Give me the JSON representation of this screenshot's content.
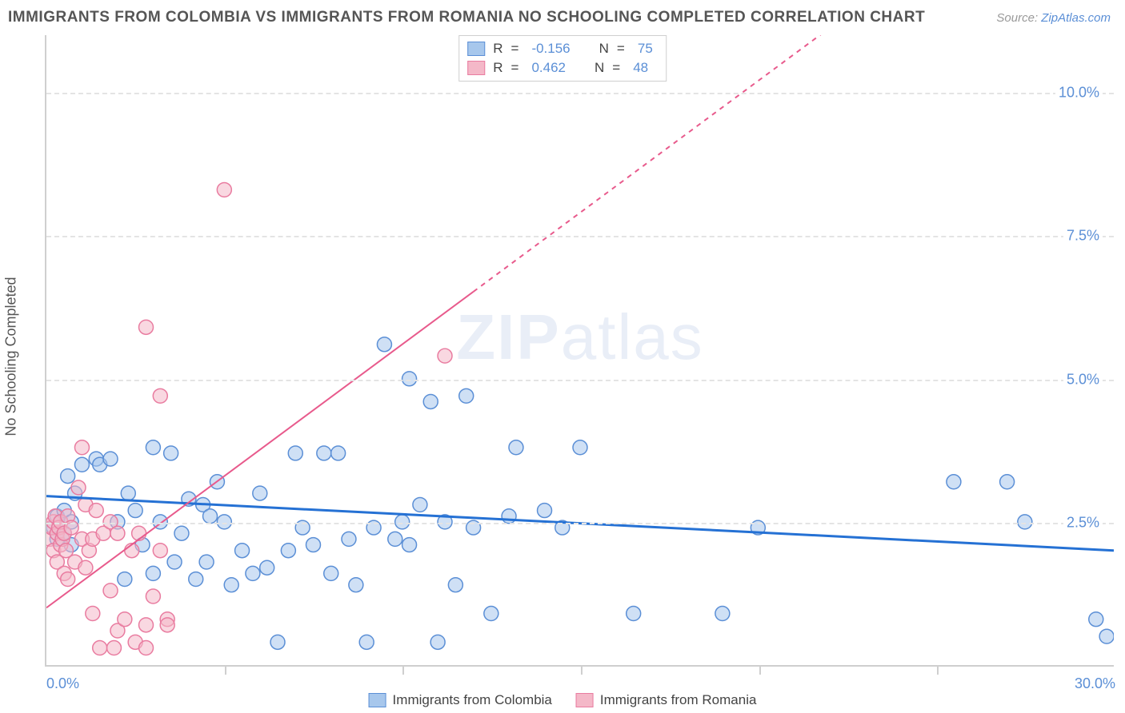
{
  "title": "IMMIGRANTS FROM COLOMBIA VS IMMIGRANTS FROM ROMANIA NO SCHOOLING COMPLETED CORRELATION CHART",
  "source_label": "Source:",
  "source_link": "ZipAtlas.com",
  "yaxis_label": "No Schooling Completed",
  "watermark_bold": "ZIP",
  "watermark_light": "atlas",
  "chart": {
    "type": "scatter",
    "background_color": "#ffffff",
    "grid_color": "#e4e4e4",
    "axis_color": "#cfcfcf",
    "tick_label_color": "#5b8fd6",
    "xlim": [
      0,
      30
    ],
    "ylim": [
      0,
      11
    ],
    "yticks": [
      {
        "value": 2.5,
        "label": "2.5%"
      },
      {
        "value": 5.0,
        "label": "5.0%"
      },
      {
        "value": 7.5,
        "label": "7.5%"
      },
      {
        "value": 10.0,
        "label": "10.0%"
      }
    ],
    "xticks": [
      {
        "value": 0,
        "label": "0.0%"
      },
      {
        "value": 5,
        "label": ""
      },
      {
        "value": 10,
        "label": ""
      },
      {
        "value": 15,
        "label": ""
      },
      {
        "value": 20,
        "label": ""
      },
      {
        "value": 25,
        "label": ""
      },
      {
        "value": 30,
        "label": "30.0%"
      }
    ],
    "marker_radius": 9,
    "marker_stroke_width": 1.5,
    "series": [
      {
        "name": "Immigrants from Colombia",
        "fill_color": "#a7c7ec",
        "stroke_color": "#5b8fd6",
        "fill_opacity": 0.55,
        "trend": {
          "x0": 0,
          "y0": 2.95,
          "x1": 30,
          "y1": 2.0,
          "color": "#2571d4",
          "width": 3,
          "dash": "none",
          "solid_until_x": 30
        },
        "correlation_R": "-0.156",
        "correlation_N": "75",
        "points": [
          [
            0.2,
            2.4
          ],
          [
            0.3,
            2.6
          ],
          [
            0.3,
            2.2
          ],
          [
            0.4,
            2.5
          ],
          [
            0.5,
            2.3
          ],
          [
            0.5,
            2.7
          ],
          [
            0.6,
            3.3
          ],
          [
            0.7,
            2.1
          ],
          [
            0.7,
            2.5
          ],
          [
            0.8,
            3.0
          ],
          [
            1.0,
            3.5
          ],
          [
            1.4,
            3.6
          ],
          [
            1.5,
            3.5
          ],
          [
            1.8,
            3.6
          ],
          [
            2.0,
            2.5
          ],
          [
            2.2,
            1.5
          ],
          [
            2.3,
            3.0
          ],
          [
            2.5,
            2.7
          ],
          [
            2.7,
            2.1
          ],
          [
            3.0,
            3.8
          ],
          [
            3.0,
            1.6
          ],
          [
            3.2,
            2.5
          ],
          [
            3.5,
            3.7
          ],
          [
            3.6,
            1.8
          ],
          [
            3.8,
            2.3
          ],
          [
            4.0,
            2.9
          ],
          [
            4.2,
            1.5
          ],
          [
            4.4,
            2.8
          ],
          [
            4.5,
            1.8
          ],
          [
            4.6,
            2.6
          ],
          [
            5.0,
            2.5
          ],
          [
            5.2,
            1.4
          ],
          [
            5.5,
            2.0
          ],
          [
            5.8,
            1.6
          ],
          [
            6.0,
            3.0
          ],
          [
            6.2,
            1.7
          ],
          [
            6.5,
            0.4
          ],
          [
            7.0,
            3.7
          ],
          [
            7.2,
            2.4
          ],
          [
            7.5,
            2.1
          ],
          [
            7.8,
            3.7
          ],
          [
            8.0,
            1.6
          ],
          [
            8.2,
            3.7
          ],
          [
            8.5,
            2.2
          ],
          [
            8.7,
            1.4
          ],
          [
            9.0,
            0.4
          ],
          [
            9.2,
            2.4
          ],
          [
            9.5,
            5.6
          ],
          [
            9.8,
            2.2
          ],
          [
            10.0,
            2.5
          ],
          [
            10.2,
            2.1
          ],
          [
            10.2,
            5.0
          ],
          [
            10.5,
            2.8
          ],
          [
            10.8,
            4.6
          ],
          [
            11.0,
            0.4
          ],
          [
            11.2,
            2.5
          ],
          [
            11.5,
            1.4
          ],
          [
            11.8,
            4.7
          ],
          [
            12.0,
            2.4
          ],
          [
            12.5,
            0.9
          ],
          [
            13.0,
            2.6
          ],
          [
            13.2,
            3.8
          ],
          [
            14.0,
            2.7
          ],
          [
            14.5,
            2.4
          ],
          [
            15.0,
            3.8
          ],
          [
            16.5,
            0.9
          ],
          [
            19.0,
            0.9
          ],
          [
            20.0,
            2.4
          ],
          [
            25.5,
            3.2
          ],
          [
            27.0,
            3.2
          ],
          [
            29.5,
            0.8
          ],
          [
            29.8,
            0.5
          ],
          [
            27.5,
            2.5
          ],
          [
            4.8,
            3.2
          ],
          [
            6.8,
            2.0
          ]
        ]
      },
      {
        "name": "Immigrants from Romania",
        "fill_color": "#f4b8c8",
        "stroke_color": "#e97ca0",
        "fill_opacity": 0.55,
        "trend": {
          "x0": 0,
          "y0": 1.0,
          "x1": 30,
          "y1": 14.8,
          "color": "#e85a8c",
          "width": 2,
          "dash": "6,6",
          "solid_until_x": 12
        },
        "correlation_R": "0.462",
        "correlation_N": "48",
        "points": [
          [
            0.1,
            2.2
          ],
          [
            0.15,
            2.4
          ],
          [
            0.2,
            2.0
          ],
          [
            0.2,
            2.5
          ],
          [
            0.25,
            2.6
          ],
          [
            0.3,
            2.3
          ],
          [
            0.3,
            1.8
          ],
          [
            0.35,
            2.4
          ],
          [
            0.4,
            2.5
          ],
          [
            0.4,
            2.1
          ],
          [
            0.45,
            2.2
          ],
          [
            0.5,
            1.6
          ],
          [
            0.5,
            2.3
          ],
          [
            0.55,
            2.0
          ],
          [
            0.6,
            2.6
          ],
          [
            0.6,
            1.5
          ],
          [
            0.7,
            2.4
          ],
          [
            0.8,
            1.8
          ],
          [
            0.9,
            3.1
          ],
          [
            1.0,
            2.2
          ],
          [
            1.0,
            3.8
          ],
          [
            1.1,
            1.7
          ],
          [
            1.1,
            2.8
          ],
          [
            1.2,
            2.0
          ],
          [
            1.3,
            0.9
          ],
          [
            1.3,
            2.2
          ],
          [
            1.4,
            2.7
          ],
          [
            1.5,
            0.3
          ],
          [
            1.6,
            2.3
          ],
          [
            1.8,
            1.3
          ],
          [
            1.8,
            2.5
          ],
          [
            1.9,
            0.3
          ],
          [
            2.0,
            2.3
          ],
          [
            2.0,
            0.6
          ],
          [
            2.2,
            0.8
          ],
          [
            2.4,
            2.0
          ],
          [
            2.5,
            0.4
          ],
          [
            2.6,
            2.3
          ],
          [
            2.8,
            0.7
          ],
          [
            2.8,
            0.3
          ],
          [
            2.8,
            5.9
          ],
          [
            3.0,
            1.2
          ],
          [
            3.2,
            2.0
          ],
          [
            3.2,
            4.7
          ],
          [
            3.4,
            0.8
          ],
          [
            3.4,
            0.7
          ],
          [
            11.2,
            5.4
          ],
          [
            5.0,
            8.3
          ]
        ]
      }
    ]
  },
  "legend_top": {
    "r_label": "R",
    "n_label": "N",
    "equals": "="
  },
  "legend_bottom": [
    {
      "swatch_fill": "#a7c7ec",
      "swatch_stroke": "#5b8fd6",
      "label": "Immigrants from Colombia"
    },
    {
      "swatch_fill": "#f4b8c8",
      "swatch_stroke": "#e97ca0",
      "label": "Immigrants from Romania"
    }
  ]
}
